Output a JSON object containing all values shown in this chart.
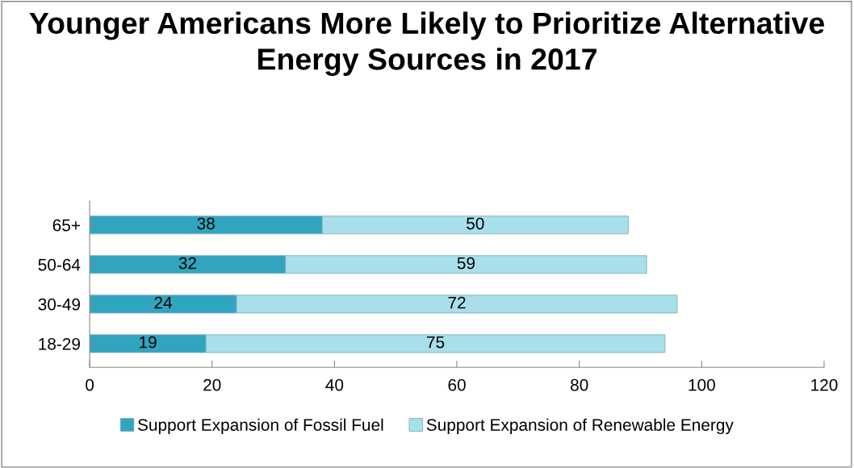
{
  "chart_data": {
    "type": "bar",
    "orientation": "horizontal",
    "stacked": true,
    "title": "Younger Americans More Likely to Prioritize Alternative Energy Sources in 2017",
    "categories": [
      "65+",
      "50-64",
      "30-49",
      "18-29"
    ],
    "series": [
      {
        "name": "Support Expansion of Fossil Fuel",
        "color": "#31a5c0",
        "values": [
          38,
          32,
          24,
          19
        ]
      },
      {
        "name": "Support Expansion of Renewable Energy",
        "color": "#a9dfeb",
        "values": [
          50,
          59,
          72,
          75
        ]
      }
    ],
    "xlim": [
      0,
      120
    ],
    "xticks": [
      0,
      20,
      40,
      60,
      80,
      100,
      120
    ],
    "grid": false,
    "legend": "bottom",
    "data_labels": true
  }
}
